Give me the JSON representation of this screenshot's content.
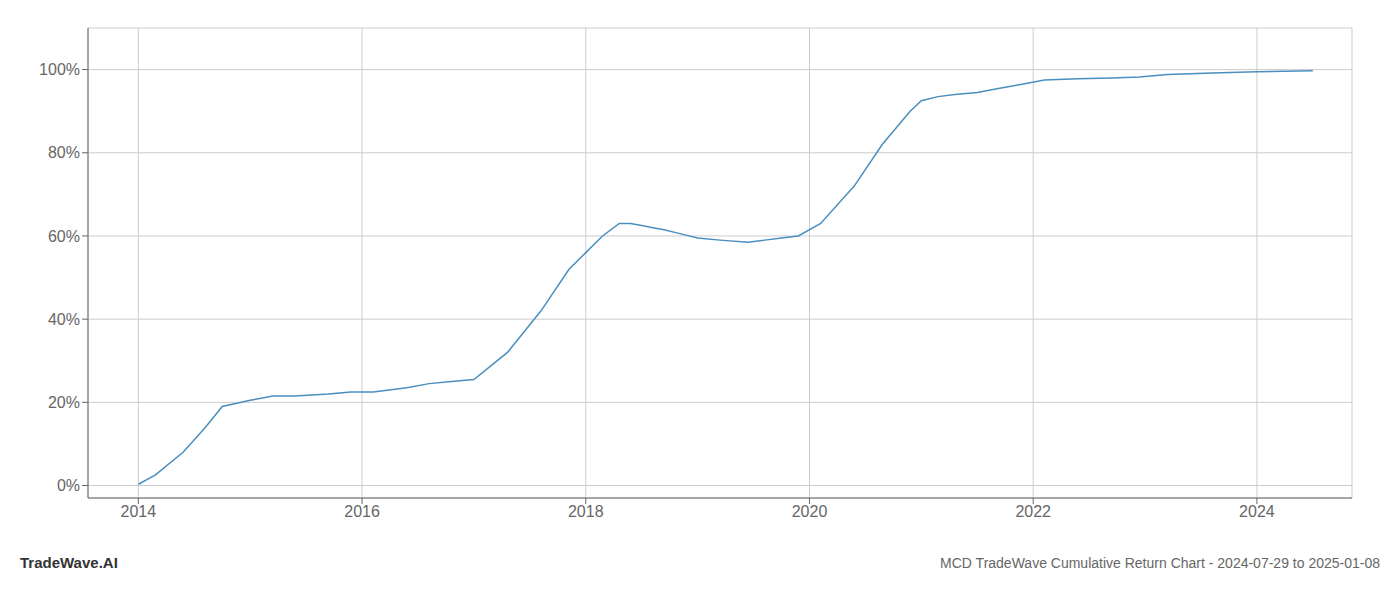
{
  "chart_data": {
    "type": "line",
    "title": "MCD TradeWave Cumulative Return Chart - 2024-07-29 to 2025-01-08",
    "annotations": [
      "TradeWave.AI"
    ],
    "color": "#4a8fbe",
    "grid": true,
    "x": [
      2014.0,
      2014.15,
      2014.4,
      2014.6,
      2014.75,
      2015.0,
      2015.1,
      2015.2,
      2015.4,
      2015.7,
      2015.9,
      2016.1,
      2016.4,
      2016.6,
      2016.8,
      2017.0,
      2017.3,
      2017.6,
      2017.85,
      2018.0,
      2018.15,
      2018.3,
      2018.4,
      2018.5,
      2018.6,
      2018.7,
      2018.85,
      2019.0,
      2019.2,
      2019.45,
      2019.6,
      2019.75,
      2019.9,
      2020.1,
      2020.4,
      2020.65,
      2020.9,
      2021.0,
      2021.15,
      2021.3,
      2021.5,
      2021.7,
      2021.9,
      2022.1,
      2022.4,
      2022.7,
      2022.95,
      2023.2,
      2023.6,
      2024.0,
      2024.5
    ],
    "values": [
      0.3,
      2.5,
      8.0,
      14.0,
      19.0,
      20.5,
      21.0,
      21.5,
      21.5,
      22.0,
      22.5,
      22.5,
      23.5,
      24.5,
      25.0,
      25.5,
      32.0,
      42.0,
      52.0,
      56.0,
      60.0,
      63.0,
      63.0,
      62.5,
      62.0,
      61.5,
      60.5,
      59.5,
      59.0,
      58.5,
      59.0,
      59.5,
      60.0,
      63.0,
      72.0,
      82.0,
      90.0,
      92.5,
      93.5,
      94.0,
      94.5,
      95.5,
      96.5,
      97.5,
      97.8,
      98.0,
      98.2,
      98.8,
      99.2,
      99.5,
      99.7
    ],
    "xlim": [
      2013.55,
      2024.85
    ],
    "ylim": [
      -3,
      110
    ],
    "xticks": [
      2014,
      2016,
      2018,
      2020,
      2022,
      2024
    ],
    "yticks": [
      {
        "value": 0,
        "label": "0%"
      },
      {
        "value": 20,
        "label": "20%"
      },
      {
        "value": 40,
        "label": "40%"
      },
      {
        "value": 60,
        "label": "60%"
      },
      {
        "value": 80,
        "label": "80%"
      },
      {
        "value": 100,
        "label": "100%"
      }
    ]
  }
}
